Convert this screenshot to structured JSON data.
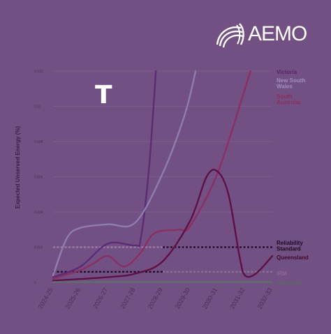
{
  "brand": {
    "name": "AEMO"
  },
  "overlay_letter": "T",
  "colors": {
    "background": "#735083",
    "victoria": "#5b2b74",
    "nsw": "#8d7eae",
    "south_australia": "#8a2f63",
    "queensland": "#5e1045",
    "tasmania": "#5f6e6a",
    "reliability": "#2b0f33",
    "irm": "#8e6e8e"
  },
  "chart_data": {
    "type": "line",
    "title": "",
    "xlabel": "",
    "ylabel": "Expected Unserved Energy (%)",
    "ylim": [
      0,
      0.012
    ],
    "yticks": [
      "0",
      "0.002",
      "0.004",
      "0.006",
      "0.008",
      "0.01",
      "0.012"
    ],
    "categories": [
      "2024-25",
      "2025-26",
      "2026-27",
      "2027-28",
      "2028-29",
      "2029-30",
      "2030-31",
      "2031-32",
      "2032-33"
    ],
    "legend_placement": "right",
    "series": [
      {
        "name": "Victoria",
        "color": "#5b2b74",
        "points": [
          [
            0,
            0.0003
          ],
          [
            1,
            0.0009
          ],
          [
            2,
            0.0022
          ],
          [
            3,
            0.0021
          ],
          [
            3.2,
            0.0025
          ],
          [
            3.5,
            0.0065
          ],
          [
            3.75,
            0.012
          ]
        ]
      },
      {
        "name": "New South Wales",
        "color": "#8d7eae",
        "points": [
          [
            0,
            0.0004
          ],
          [
            0.5,
            0.0025
          ],
          [
            1,
            0.0031
          ],
          [
            2,
            0.0033
          ],
          [
            3,
            0.0034
          ],
          [
            4,
            0.0062
          ],
          [
            4.8,
            0.0095
          ],
          [
            5.2,
            0.012
          ]
        ]
      },
      {
        "name": "South Australia",
        "color": "#8a2f63",
        "points": [
          [
            0,
            0.0002
          ],
          [
            1,
            0.0007
          ],
          [
            1.5,
            0.0011
          ],
          [
            2,
            0.0015
          ],
          [
            2.6,
            0.0009
          ],
          [
            3.2,
            0.0017
          ],
          [
            3.7,
            0.0028
          ],
          [
            4.6,
            0.003
          ],
          [
            5,
            0.0032
          ],
          [
            6,
            0.0062
          ],
          [
            7,
            0.011
          ],
          [
            7.2,
            0.012
          ]
        ]
      },
      {
        "name": "Queensland",
        "color": "#5e1045",
        "points": [
          [
            0,
            0.0001
          ],
          [
            2,
            0.0003
          ],
          [
            3,
            0.0005
          ],
          [
            4,
            0.0012
          ],
          [
            5,
            0.0035
          ],
          [
            5.6,
            0.006
          ],
          [
            6,
            0.0063
          ],
          [
            6.4,
            0.005
          ],
          [
            6.8,
            0.0015
          ],
          [
            7,
            0.0004
          ],
          [
            7.4,
            0.0005
          ],
          [
            8,
            0.0015
          ]
        ]
      },
      {
        "name": "Tasmania",
        "color": "#5f6e6a",
        "points": [
          [
            0,
            2e-05
          ],
          [
            8,
            2e-05
          ]
        ]
      }
    ],
    "reference_lines": [
      {
        "name": "Reliability Standard",
        "value": 0.002,
        "color": "#2b0f33",
        "xrange": [
          4,
          8
        ]
      },
      {
        "name": "IRM",
        "value": 0.0006,
        "color": "#8e6e8e",
        "xrange": [
          4,
          8
        ]
      }
    ]
  }
}
